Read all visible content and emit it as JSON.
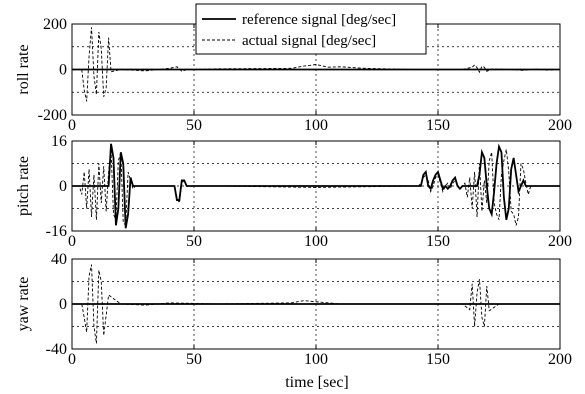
{
  "chart_data": {
    "type": "line",
    "xlabel": "time [sec]",
    "legend": {
      "placement": "top-center",
      "entries": [
        {
          "label": "reference signal [deg/sec]",
          "style": "solid"
        },
        {
          "label": "actual signal [deg/sec]",
          "style": "dashed"
        }
      ]
    },
    "panels": [
      {
        "ylabel": "roll rate",
        "xlim": [
          0,
          200
        ],
        "ylim": [
          -200,
          200
        ],
        "xticks": [
          0,
          50,
          100,
          150,
          200
        ],
        "xtick_labels": [
          "0",
          "50",
          "100",
          "150",
          "200"
        ],
        "yticks": [
          -200,
          0,
          200
        ],
        "ytick_labels": [
          "-200",
          "0",
          "200"
        ],
        "ygrid": [
          -100,
          0,
          100
        ],
        "grid": true,
        "series": [
          {
            "style": "solid",
            "x": [
              0,
              200
            ],
            "y": [
              0,
              0
            ]
          },
          {
            "style": "dashed",
            "x": [
              0,
              4,
              5,
              6,
              7,
              8,
              9,
              10,
              11,
              12,
              13,
              14,
              15,
              16,
              20,
              30,
              40,
              43,
              45,
              47,
              50,
              60,
              90,
              95,
              100,
              105,
              110,
              120,
              140,
              160,
              164,
              165,
              166,
              167,
              168,
              169,
              170,
              172,
              180,
              185,
              190,
              195,
              200
            ],
            "y": [
              0,
              0,
              -90,
              -140,
              60,
              185,
              -30,
              -110,
              165,
              90,
              -120,
              -80,
              140,
              -10,
              0,
              -6,
              5,
              12,
              -8,
              0,
              0,
              3,
              5,
              15,
              22,
              10,
              12,
              5,
              0,
              0,
              10,
              20,
              8,
              -12,
              15,
              10,
              -8,
              2,
              0,
              -4,
              2,
              -3,
              0
            ]
          }
        ]
      },
      {
        "ylabel": "pitch rate",
        "xlim": [
          0,
          200
        ],
        "ylim": [
          -16,
          16
        ],
        "xticks": [
          0,
          50,
          100,
          150,
          200
        ],
        "xtick_labels": [
          "0",
          "50",
          "100",
          "150",
          "200"
        ],
        "yticks": [
          -16,
          0,
          16
        ],
        "ytick_labels": [
          "-16",
          "0",
          "16"
        ],
        "ygrid": [
          -8,
          0,
          8
        ],
        "grid": true,
        "series": [
          {
            "style": "solid",
            "x": [
              0,
              15,
              16,
              17,
              18,
              19,
              20,
              21,
              22,
              23,
              24,
              25,
              42,
              43,
              44,
              45,
              46,
              47,
              143,
              144,
              145,
              146,
              147,
              148,
              149,
              150,
              151,
              152,
              153,
              154,
              155,
              156,
              157,
              158,
              159,
              160,
              161,
              166,
              167,
              168,
              169,
              170,
              171,
              172,
              173,
              174,
              175,
              176,
              177,
              178,
              179,
              180,
              181,
              182,
              183,
              184,
              185,
              186,
              200
            ],
            "y": [
              0,
              0,
              15,
              10,
              -14,
              -8,
              12,
              8,
              -15,
              -10,
              3,
              0,
              0,
              -5,
              -5,
              2,
              2,
              0,
              0,
              4,
              5,
              0,
              -1,
              2,
              4,
              5,
              2,
              -1,
              0,
              -1,
              0,
              2,
              3,
              0,
              -1,
              0,
              0,
              0,
              4,
              12,
              10,
              0,
              -8,
              -10,
              -2,
              8,
              14,
              12,
              -4,
              -12,
              -8,
              6,
              10,
              4,
              -2,
              0,
              2,
              0,
              0
            ]
          },
          {
            "style": "dashed",
            "x": [
              0,
              3,
              4,
              5,
              6,
              7,
              8,
              9,
              10,
              11,
              12,
              13,
              14,
              15,
              16,
              17,
              18,
              19,
              20,
              21,
              22,
              23,
              24,
              25,
              26,
              35,
              42,
              43,
              44,
              45,
              46,
              47,
              60,
              100,
              142,
              143,
              144,
              145,
              146,
              147,
              148,
              149,
              150,
              151,
              152,
              153,
              154,
              155,
              156,
              157,
              158,
              159,
              160,
              161,
              162,
              163,
              164,
              165,
              166,
              167,
              168,
              169,
              170,
              171,
              172,
              173,
              174,
              175,
              176,
              177,
              178,
              179,
              180,
              181,
              182,
              183,
              184,
              185,
              186,
              187,
              188,
              200
            ],
            "y": [
              0,
              0,
              -3,
              5,
              -8,
              6,
              -11,
              4,
              -12,
              8,
              -6,
              7,
              -9,
              5,
              13,
              -10,
              -12,
              9,
              12,
              -13,
              -14,
              5,
              2,
              -1,
              0,
              0,
              0,
              -4,
              -6,
              1,
              2,
              0,
              0,
              -0.5,
              0,
              1,
              3,
              4,
              2,
              -2,
              0,
              3,
              4,
              1,
              -2,
              0,
              1,
              -1,
              1,
              2,
              0,
              -1,
              0,
              1,
              -4,
              3,
              -8,
              5,
              -11,
              8,
              -9,
              2,
              -6,
              9,
              12,
              -6,
              -10,
              -12,
              4,
              9,
              13,
              5,
              -9,
              -10,
              -14,
              -11,
              8,
              6,
              1,
              -3,
              0,
              0
            ]
          }
        ]
      },
      {
        "ylabel": "yaw rate",
        "xlim": [
          0,
          200
        ],
        "ylim": [
          -40,
          40
        ],
        "xticks": [
          0,
          50,
          100,
          150,
          200
        ],
        "xtick_labels": [
          "0",
          "50",
          "100",
          "150",
          "200"
        ],
        "yticks": [
          -40,
          0,
          40
        ],
        "ytick_labels": [
          "-40",
          "0",
          "40"
        ],
        "ygrid": [
          -20,
          0,
          20
        ],
        "grid": true,
        "series": [
          {
            "style": "solid",
            "x": [
              0,
              200
            ],
            "y": [
              0,
              0
            ]
          },
          {
            "style": "dashed",
            "x": [
              0,
              4,
              5,
              6,
              7,
              8,
              9,
              10,
              11,
              12,
              13,
              14,
              15,
              20,
              30,
              40,
              60,
              90,
              95,
              100,
              105,
              110,
              150,
              160,
              163,
              164,
              165,
              166,
              167,
              168,
              169,
              170,
              171,
              175,
              200
            ],
            "y": [
              0,
              0,
              -12,
              -25,
              25,
              35,
              -20,
              -35,
              30,
              20,
              -28,
              -10,
              8,
              0,
              -1,
              1,
              0,
              1,
              3,
              2,
              1,
              0,
              0,
              0,
              -5,
              18,
              -20,
              10,
              22,
              -12,
              -20,
              16,
              -6,
              0,
              0
            ]
          }
        ]
      }
    ]
  }
}
